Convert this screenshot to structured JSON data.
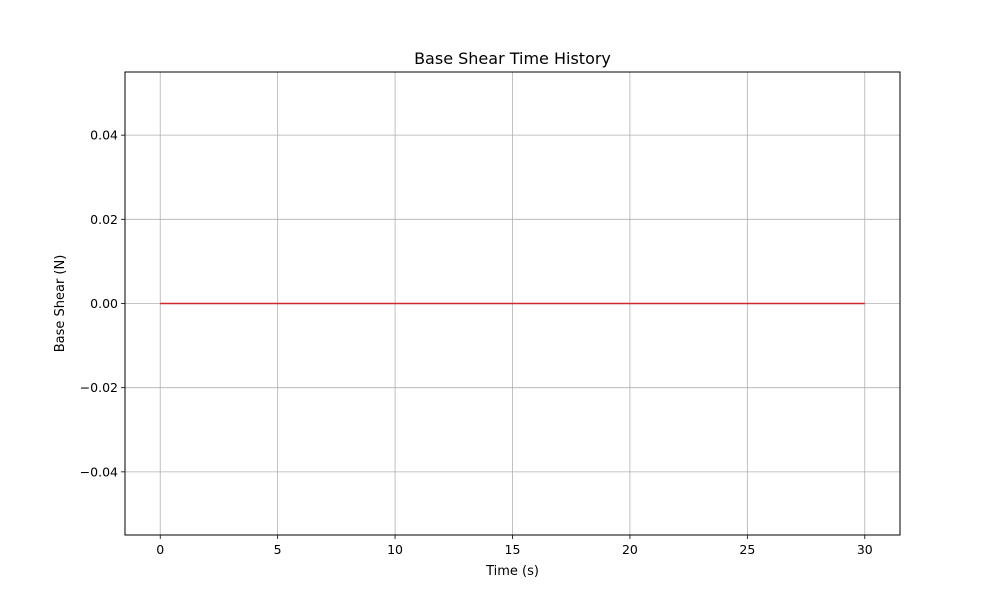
{
  "chart_data": {
    "type": "line",
    "title": "Base Shear Time History",
    "xlabel": "Time (s)",
    "ylabel": "Base Shear (N)",
    "xlim": [
      -1.5,
      31.5
    ],
    "ylim": [
      -0.055,
      0.055
    ],
    "x_ticks": [
      0,
      5,
      10,
      15,
      20,
      25,
      30
    ],
    "x_tick_labels": [
      "0",
      "5",
      "10",
      "15",
      "20",
      "25",
      "30"
    ],
    "y_ticks": [
      -0.04,
      -0.02,
      0.0,
      0.02,
      0.04
    ],
    "y_tick_labels": [
      "−0.04",
      "−0.02",
      "0.00",
      "0.02",
      "0.04"
    ],
    "grid": true,
    "series": [
      {
        "color": "#d62728",
        "x": [
          0,
          30
        ],
        "y": [
          0.0,
          0.0
        ]
      }
    ]
  }
}
